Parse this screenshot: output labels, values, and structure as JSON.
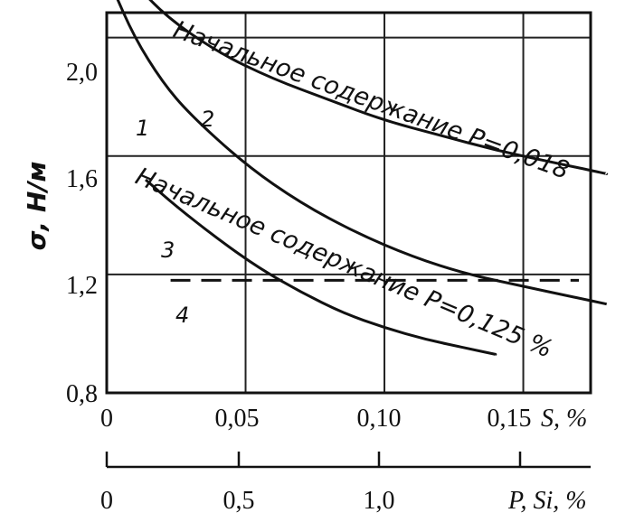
{
  "chart_data": {
    "type": "line",
    "ylabel": "σ, Н/м",
    "ylim": [
      0.8,
      2.2
    ],
    "y_ticks": [
      "0,8",
      "1,2",
      "1,6",
      "2,0"
    ],
    "x_axes": [
      {
        "name": "S, %",
        "ticks": [
          "0",
          "0,05",
          "0,10",
          "0,15"
        ],
        "tick_values": [
          0,
          0.05,
          0.1,
          0.15
        ],
        "xlim": [
          0,
          0.18
        ]
      },
      {
        "name": "P, Si, %",
        "ticks": [
          "0",
          "0,5",
          "1,0"
        ],
        "tick_values": [
          0,
          0.5,
          1.0
        ],
        "xlim": [
          0,
          1.8
        ]
      }
    ],
    "grid": true,
    "annotations": [
      "Начальное содержание P=0,018",
      "Начальное содержание P=0,125 %"
    ],
    "series": [
      {
        "name": "1",
        "x": [
          0.002,
          0.01,
          0.02,
          0.03,
          0.05,
          0.07,
          0.09,
          0.11,
          0.13,
          0.15,
          0.17,
          0.18
        ],
        "values": [
          2.17,
          2.0,
          1.85,
          1.74,
          1.57,
          1.44,
          1.34,
          1.26,
          1.2,
          1.16,
          1.12,
          1.1
        ]
      },
      {
        "name": "2",
        "x": [
          0.007,
          0.02,
          0.04,
          0.06,
          0.08,
          0.1,
          0.12,
          0.14,
          0.16,
          0.18
        ],
        "values": [
          2.22,
          2.08,
          1.95,
          1.86,
          1.79,
          1.72,
          1.67,
          1.62,
          1.58,
          1.54
        ]
      },
      {
        "name": "3",
        "x": [
          0.014,
          0.025,
          0.04,
          0.055,
          0.07,
          0.085,
          0.1,
          0.115,
          0.13,
          0.14
        ],
        "values": [
          1.52,
          1.43,
          1.32,
          1.22,
          1.14,
          1.07,
          1.02,
          0.98,
          0.95,
          0.93
        ]
      },
      {
        "name": "4",
        "x": [
          0.023,
          0.05,
          0.08,
          0.11,
          0.14,
          0.17
        ],
        "values": [
          1.18,
          1.18,
          1.18,
          1.18,
          1.18,
          1.18
        ],
        "dashed": true
      }
    ]
  }
}
